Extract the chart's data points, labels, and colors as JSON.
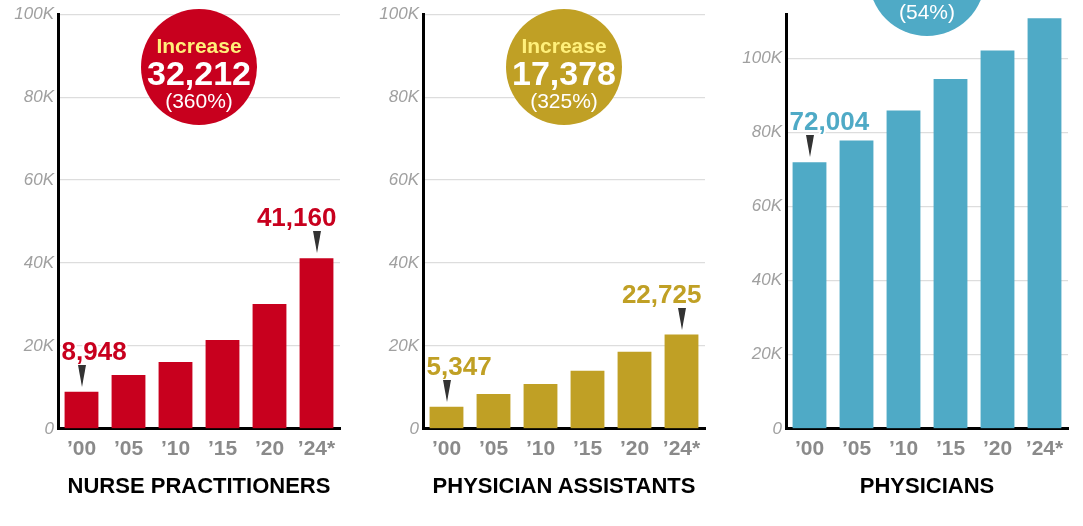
{
  "chart_data": [
    {
      "type": "bar",
      "xlabel": "NURSE PRACTITIONERS",
      "categories": [
        "’00",
        "’05",
        "’10",
        "’15",
        "’20",
        "’24*"
      ],
      "values": [
        8948,
        13000,
        16100,
        21400,
        30100,
        41160
      ],
      "value_labels": [
        "8,948",
        null,
        null,
        null,
        null,
        "41,160"
      ],
      "color": "#c8001e",
      "ylim": [
        0,
        100000
      ],
      "yticks": [
        {
          "value": 0,
          "label": "0"
        },
        {
          "value": 20000,
          "label": "20K"
        },
        {
          "value": 40000,
          "label": "40K"
        },
        {
          "value": 60000,
          "label": "60K"
        },
        {
          "value": 80000,
          "label": "80K"
        },
        {
          "value": 100000,
          "label": "100K"
        }
      ],
      "grid": "y",
      "annotations": [
        "Increase",
        "32,212",
        "(360%)"
      ]
    },
    {
      "type": "bar",
      "xlabel": "PHYSICIAN ASSISTANTS",
      "categories": [
        "’00",
        "’05",
        "’10",
        "’15",
        "’20",
        "’24*"
      ],
      "values": [
        5347,
        8400,
        10800,
        14000,
        18600,
        22725
      ],
      "value_labels": [
        "5,347",
        null,
        null,
        null,
        null,
        "22,725"
      ],
      "color": "#c0a025",
      "ylim": [
        0,
        100000
      ],
      "yticks": [
        {
          "value": 0,
          "label": "0"
        },
        {
          "value": 20000,
          "label": "20K"
        },
        {
          "value": 40000,
          "label": "40K"
        },
        {
          "value": 60000,
          "label": "60K"
        },
        {
          "value": 80000,
          "label": "80K"
        },
        {
          "value": 100000,
          "label": "100K"
        }
      ],
      "grid": "y",
      "annotations": [
        "Increase",
        "17,378",
        "(325%)"
      ]
    },
    {
      "type": "bar",
      "xlabel": "PHYSICIANS",
      "categories": [
        "’00",
        "’05",
        "’10",
        "’15",
        "’20",
        "’24*"
      ],
      "values": [
        72004,
        77900,
        86000,
        94500,
        102200,
        110900
      ],
      "value_labels": [
        "72,004",
        null,
        null,
        null,
        null,
        null
      ],
      "color": "#4faac6",
      "ylim": [
        0,
        112000
      ],
      "yticks": [
        {
          "value": 0,
          "label": "0"
        },
        {
          "value": 20000,
          "label": "20K"
        },
        {
          "value": 40000,
          "label": "40K"
        },
        {
          "value": 60000,
          "label": "60K"
        },
        {
          "value": 80000,
          "label": "80K"
        },
        {
          "value": 100000,
          "label": "100K"
        }
      ],
      "grid": "y",
      "annotations": [
        "(54%)"
      ]
    }
  ]
}
